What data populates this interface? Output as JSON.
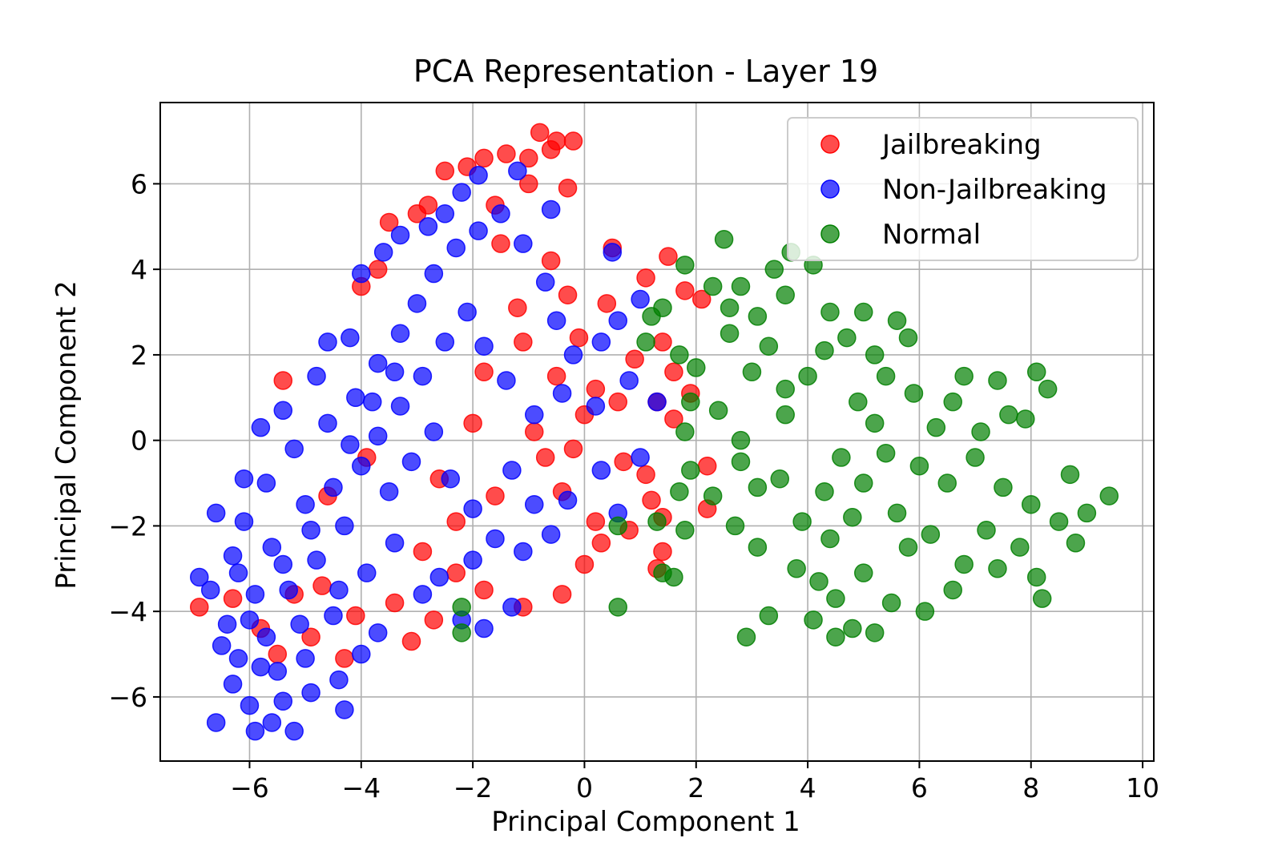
{
  "chart_data": {
    "type": "scatter",
    "title": "PCA Representation - Layer 19",
    "xlabel": "Principal Component 1",
    "ylabel": "Principal Component 2",
    "xlim": [
      -7.6,
      10.2
    ],
    "ylim": [
      -7.5,
      7.9
    ],
    "xticks": [
      -6,
      -4,
      -2,
      0,
      2,
      4,
      6,
      8,
      10
    ],
    "yticks": [
      -6,
      -4,
      -2,
      0,
      2,
      4,
      6
    ],
    "grid": true,
    "legend_position": "top-right",
    "marker_alpha": 0.7,
    "series": [
      {
        "name": "Jailbreaking",
        "color": "#ff0000",
        "points": [
          [
            -0.8,
            7.2
          ],
          [
            -0.5,
            7.0
          ],
          [
            -0.2,
            7.0
          ],
          [
            -0.6,
            6.8
          ],
          [
            -1.0,
            6.6
          ],
          [
            -1.4,
            6.7
          ],
          [
            -1.8,
            6.6
          ],
          [
            -2.1,
            6.4
          ],
          [
            -2.5,
            6.3
          ],
          [
            -0.3,
            5.9
          ],
          [
            -3.5,
            5.1
          ],
          [
            -2.8,
            5.5
          ],
          [
            -3.0,
            5.3
          ],
          [
            0.5,
            4.5
          ],
          [
            1.5,
            4.3
          ],
          [
            1.1,
            3.8
          ],
          [
            1.8,
            3.5
          ],
          [
            2.1,
            3.3
          ],
          [
            1.4,
            2.3
          ],
          [
            1.6,
            1.6
          ],
          [
            1.9,
            1.1
          ],
          [
            1.6,
            0.5
          ],
          [
            2.2,
            -0.6
          ],
          [
            2.2,
            -1.6
          ],
          [
            1.1,
            -0.8
          ],
          [
            1.4,
            -1.8
          ],
          [
            1.4,
            -2.6
          ],
          [
            1.3,
            -3.0
          ],
          [
            0.0,
            -2.9
          ],
          [
            -0.4,
            -3.6
          ],
          [
            -1.1,
            -3.9
          ],
          [
            -1.8,
            -3.5
          ],
          [
            -3.1,
            -4.7
          ],
          [
            -2.7,
            -4.2
          ],
          [
            -6.9,
            -3.9
          ],
          [
            -5.5,
            -5.0
          ],
          [
            -4.9,
            -4.6
          ],
          [
            -4.3,
            -5.1
          ],
          [
            -4.6,
            -1.3
          ],
          [
            -3.9,
            -0.4
          ],
          [
            -5.4,
            1.4
          ],
          [
            -4.0,
            3.6
          ],
          [
            -3.7,
            4.0
          ],
          [
            -0.1,
            2.4
          ],
          [
            0.4,
            3.2
          ],
          [
            0.9,
            1.9
          ],
          [
            1.3,
            0.9
          ],
          [
            0.7,
            -0.5
          ],
          [
            0.2,
            -1.9
          ],
          [
            -0.5,
            1.5
          ],
          [
            -1.2,
            3.1
          ],
          [
            -1.5,
            4.6
          ],
          [
            -1.6,
            5.5
          ],
          [
            -1.0,
            6.0
          ],
          [
            -0.6,
            4.2
          ],
          [
            -0.3,
            3.4
          ],
          [
            0.0,
            0.6
          ],
          [
            -0.7,
            -0.4
          ],
          [
            -1.6,
            -1.3
          ],
          [
            -2.3,
            -1.9
          ],
          [
            -2.6,
            -0.9
          ],
          [
            -2.0,
            0.4
          ],
          [
            -1.8,
            1.6
          ],
          [
            -1.1,
            2.3
          ],
          [
            -0.9,
            0.2
          ],
          [
            -0.4,
            -1.2
          ],
          [
            0.3,
            -2.4
          ],
          [
            0.8,
            -2.1
          ],
          [
            1.2,
            -1.4
          ],
          [
            0.6,
            0.9
          ],
          [
            0.2,
            1.2
          ],
          [
            -0.2,
            -0.2
          ],
          [
            -2.9,
            -2.6
          ],
          [
            -2.3,
            -3.1
          ],
          [
            -3.4,
            -3.8
          ],
          [
            -4.1,
            -4.1
          ],
          [
            -4.7,
            -3.4
          ],
          [
            -5.2,
            -3.6
          ],
          [
            -5.8,
            -4.4
          ],
          [
            -6.3,
            -3.7
          ]
        ]
      },
      {
        "name": "Non-Jailbreaking",
        "color": "#0000ff",
        "points": [
          [
            -6.6,
            -6.6
          ],
          [
            -5.9,
            -6.8
          ],
          [
            -5.6,
            -6.6
          ],
          [
            -5.2,
            -6.8
          ],
          [
            -4.3,
            -6.3
          ],
          [
            -6.0,
            -6.2
          ],
          [
            -5.4,
            -6.1
          ],
          [
            -4.9,
            -5.9
          ],
          [
            -4.4,
            -5.6
          ],
          [
            -6.3,
            -5.7
          ],
          [
            -6.5,
            -4.8
          ],
          [
            -6.9,
            -3.2
          ],
          [
            -6.7,
            -3.5
          ],
          [
            -6.3,
            -2.7
          ],
          [
            -6.1,
            -1.9
          ],
          [
            -6.6,
            -1.7
          ],
          [
            -6.1,
            -0.9
          ],
          [
            -5.8,
            0.3
          ],
          [
            -5.4,
            0.7
          ],
          [
            -4.8,
            1.5
          ],
          [
            -4.6,
            2.3
          ],
          [
            -4.2,
            2.4
          ],
          [
            -4.0,
            3.9
          ],
          [
            -3.6,
            4.4
          ],
          [
            -3.3,
            4.8
          ],
          [
            -2.8,
            5.0
          ],
          [
            -2.5,
            5.3
          ],
          [
            -2.2,
            5.8
          ],
          [
            -1.9,
            6.2
          ],
          [
            -1.2,
            6.3
          ],
          [
            -0.6,
            5.4
          ],
          [
            0.5,
            4.4
          ],
          [
            1.0,
            3.3
          ],
          [
            0.6,
            2.8
          ],
          [
            0.3,
            2.3
          ],
          [
            0.8,
            1.4
          ],
          [
            0.2,
            0.8
          ],
          [
            1.3,
            0.9
          ],
          [
            1.0,
            -0.4
          ],
          [
            0.3,
            -0.7
          ],
          [
            0.6,
            -1.7
          ],
          [
            -0.3,
            -1.4
          ],
          [
            -0.9,
            -1.5
          ],
          [
            -1.3,
            -0.7
          ],
          [
            -2.0,
            -2.8
          ],
          [
            -2.6,
            -3.2
          ],
          [
            -2.9,
            -3.6
          ],
          [
            -2.2,
            -4.2
          ],
          [
            -1.8,
            -4.4
          ],
          [
            -1.3,
            -3.9
          ],
          [
            -3.7,
            -4.5
          ],
          [
            -4.0,
            -5.0
          ],
          [
            -4.5,
            -4.1
          ],
          [
            -5.0,
            -5.1
          ],
          [
            -5.5,
            -5.4
          ],
          [
            -5.7,
            -4.6
          ],
          [
            -6.0,
            -4.2
          ],
          [
            -5.3,
            -3.5
          ],
          [
            -4.8,
            -2.8
          ],
          [
            -4.3,
            -2.0
          ],
          [
            -5.0,
            -1.5
          ],
          [
            -5.6,
            -2.5
          ],
          [
            -6.2,
            -3.1
          ],
          [
            -5.7,
            -1.0
          ],
          [
            -5.2,
            -0.2
          ],
          [
            -4.6,
            0.4
          ],
          [
            -4.1,
            1.0
          ],
          [
            -3.7,
            1.8
          ],
          [
            -3.3,
            2.5
          ],
          [
            -3.0,
            3.2
          ],
          [
            -2.7,
            3.9
          ],
          [
            -2.3,
            4.5
          ],
          [
            -1.9,
            4.9
          ],
          [
            -1.5,
            5.3
          ],
          [
            -1.1,
            4.6
          ],
          [
            -0.7,
            3.7
          ],
          [
            -0.5,
            2.8
          ],
          [
            -0.2,
            2.0
          ],
          [
            -0.4,
            1.1
          ],
          [
            -0.9,
            0.6
          ],
          [
            -1.4,
            1.4
          ],
          [
            -1.8,
            2.2
          ],
          [
            -2.1,
            3.0
          ],
          [
            -2.5,
            2.3
          ],
          [
            -2.9,
            1.5
          ],
          [
            -3.3,
            0.8
          ],
          [
            -3.7,
            0.1
          ],
          [
            -4.0,
            -0.6
          ],
          [
            -3.5,
            -1.2
          ],
          [
            -3.1,
            -0.5
          ],
          [
            -2.7,
            0.2
          ],
          [
            -2.4,
            -0.9
          ],
          [
            -2.0,
            -1.6
          ],
          [
            -1.6,
            -2.3
          ],
          [
            -1.1,
            -2.6
          ],
          [
            -0.6,
            -2.2
          ],
          [
            -3.4,
            -2.4
          ],
          [
            -3.9,
            -3.1
          ],
          [
            -4.4,
            -3.5
          ],
          [
            -5.1,
            -4.3
          ],
          [
            -5.8,
            -5.3
          ],
          [
            -6.2,
            -5.1
          ],
          [
            -6.4,
            -4.3
          ],
          [
            -5.9,
            -3.6
          ],
          [
            -5.4,
            -2.9
          ],
          [
            -4.9,
            -2.1
          ],
          [
            -4.5,
            -1.1
          ],
          [
            -4.2,
            -0.1
          ],
          [
            -3.8,
            0.9
          ],
          [
            -3.4,
            1.6
          ]
        ]
      },
      {
        "name": "Normal",
        "color": "#007f00",
        "points": [
          [
            2.5,
            4.7
          ],
          [
            3.7,
            4.4
          ],
          [
            4.1,
            4.1
          ],
          [
            1.8,
            4.1
          ],
          [
            3.4,
            4.0
          ],
          [
            2.3,
            3.6
          ],
          [
            2.8,
            3.6
          ],
          [
            3.6,
            3.4
          ],
          [
            1.2,
            2.9
          ],
          [
            1.4,
            3.1
          ],
          [
            2.6,
            3.1
          ],
          [
            3.1,
            2.9
          ],
          [
            4.4,
            3.0
          ],
          [
            5.0,
            3.0
          ],
          [
            5.6,
            2.8
          ],
          [
            5.8,
            2.4
          ],
          [
            1.1,
            2.3
          ],
          [
            1.7,
            2.0
          ],
          [
            2.0,
            1.7
          ],
          [
            3.3,
            2.2
          ],
          [
            4.3,
            2.1
          ],
          [
            6.8,
            1.5
          ],
          [
            7.4,
            1.4
          ],
          [
            8.1,
            1.6
          ],
          [
            8.3,
            1.2
          ],
          [
            1.9,
            0.9
          ],
          [
            2.4,
            0.7
          ],
          [
            3.6,
            0.6
          ],
          [
            1.8,
            0.2
          ],
          [
            2.8,
            0.0
          ],
          [
            5.2,
            0.4
          ],
          [
            6.6,
            0.9
          ],
          [
            7.9,
            0.5
          ],
          [
            1.9,
            -0.7
          ],
          [
            2.8,
            -0.5
          ],
          [
            3.5,
            -0.9
          ],
          [
            8.7,
            -0.8
          ],
          [
            9.4,
            -1.3
          ],
          [
            1.7,
            -1.2
          ],
          [
            2.3,
            -1.3
          ],
          [
            3.1,
            -1.1
          ],
          [
            4.3,
            -1.2
          ],
          [
            1.3,
            -1.9
          ],
          [
            1.8,
            -2.1
          ],
          [
            2.7,
            -2.0
          ],
          [
            3.9,
            -1.9
          ],
          [
            4.8,
            -1.8
          ],
          [
            9.0,
            -1.7
          ],
          [
            0.6,
            -2.0
          ],
          [
            3.1,
            -2.5
          ],
          [
            4.4,
            -2.3
          ],
          [
            5.8,
            -2.5
          ],
          [
            8.8,
            -2.4
          ],
          [
            1.4,
            -3.1
          ],
          [
            1.6,
            -3.2
          ],
          [
            3.8,
            -3.0
          ],
          [
            4.2,
            -3.3
          ],
          [
            6.6,
            -3.5
          ],
          [
            8.1,
            -3.2
          ],
          [
            0.6,
            -3.9
          ],
          [
            2.9,
            -4.6
          ],
          [
            3.3,
            -4.1
          ],
          [
            4.1,
            -4.2
          ],
          [
            4.5,
            -4.6
          ],
          [
            5.2,
            -4.5
          ],
          [
            -2.2,
            -4.5
          ],
          [
            -2.2,
            -3.9
          ],
          [
            5.4,
            -0.3
          ],
          [
            6.0,
            -0.6
          ],
          [
            6.5,
            -1.0
          ],
          [
            7.0,
            -0.4
          ],
          [
            7.5,
            -1.1
          ],
          [
            8.0,
            -1.5
          ],
          [
            8.5,
            -1.9
          ],
          [
            7.2,
            -2.1
          ],
          [
            6.8,
            -2.9
          ],
          [
            6.2,
            -2.2
          ],
          [
            5.6,
            -1.7
          ],
          [
            5.0,
            -1.0
          ],
          [
            4.6,
            -0.4
          ],
          [
            4.9,
            0.9
          ],
          [
            5.4,
            1.5
          ],
          [
            5.9,
            1.1
          ],
          [
            6.3,
            0.3
          ],
          [
            7.1,
            0.2
          ],
          [
            7.6,
            0.6
          ],
          [
            4.0,
            1.5
          ],
          [
            3.6,
            1.2
          ],
          [
            3.0,
            1.6
          ],
          [
            2.6,
            2.5
          ],
          [
            4.7,
            2.4
          ],
          [
            5.2,
            2.0
          ],
          [
            4.5,
            -3.7
          ],
          [
            5.0,
            -3.1
          ],
          [
            5.5,
            -3.8
          ],
          [
            6.1,
            -4.0
          ],
          [
            7.4,
            -3.0
          ],
          [
            7.8,
            -2.5
          ],
          [
            8.2,
            -3.7
          ],
          [
            4.8,
            -4.4
          ]
        ]
      }
    ]
  }
}
